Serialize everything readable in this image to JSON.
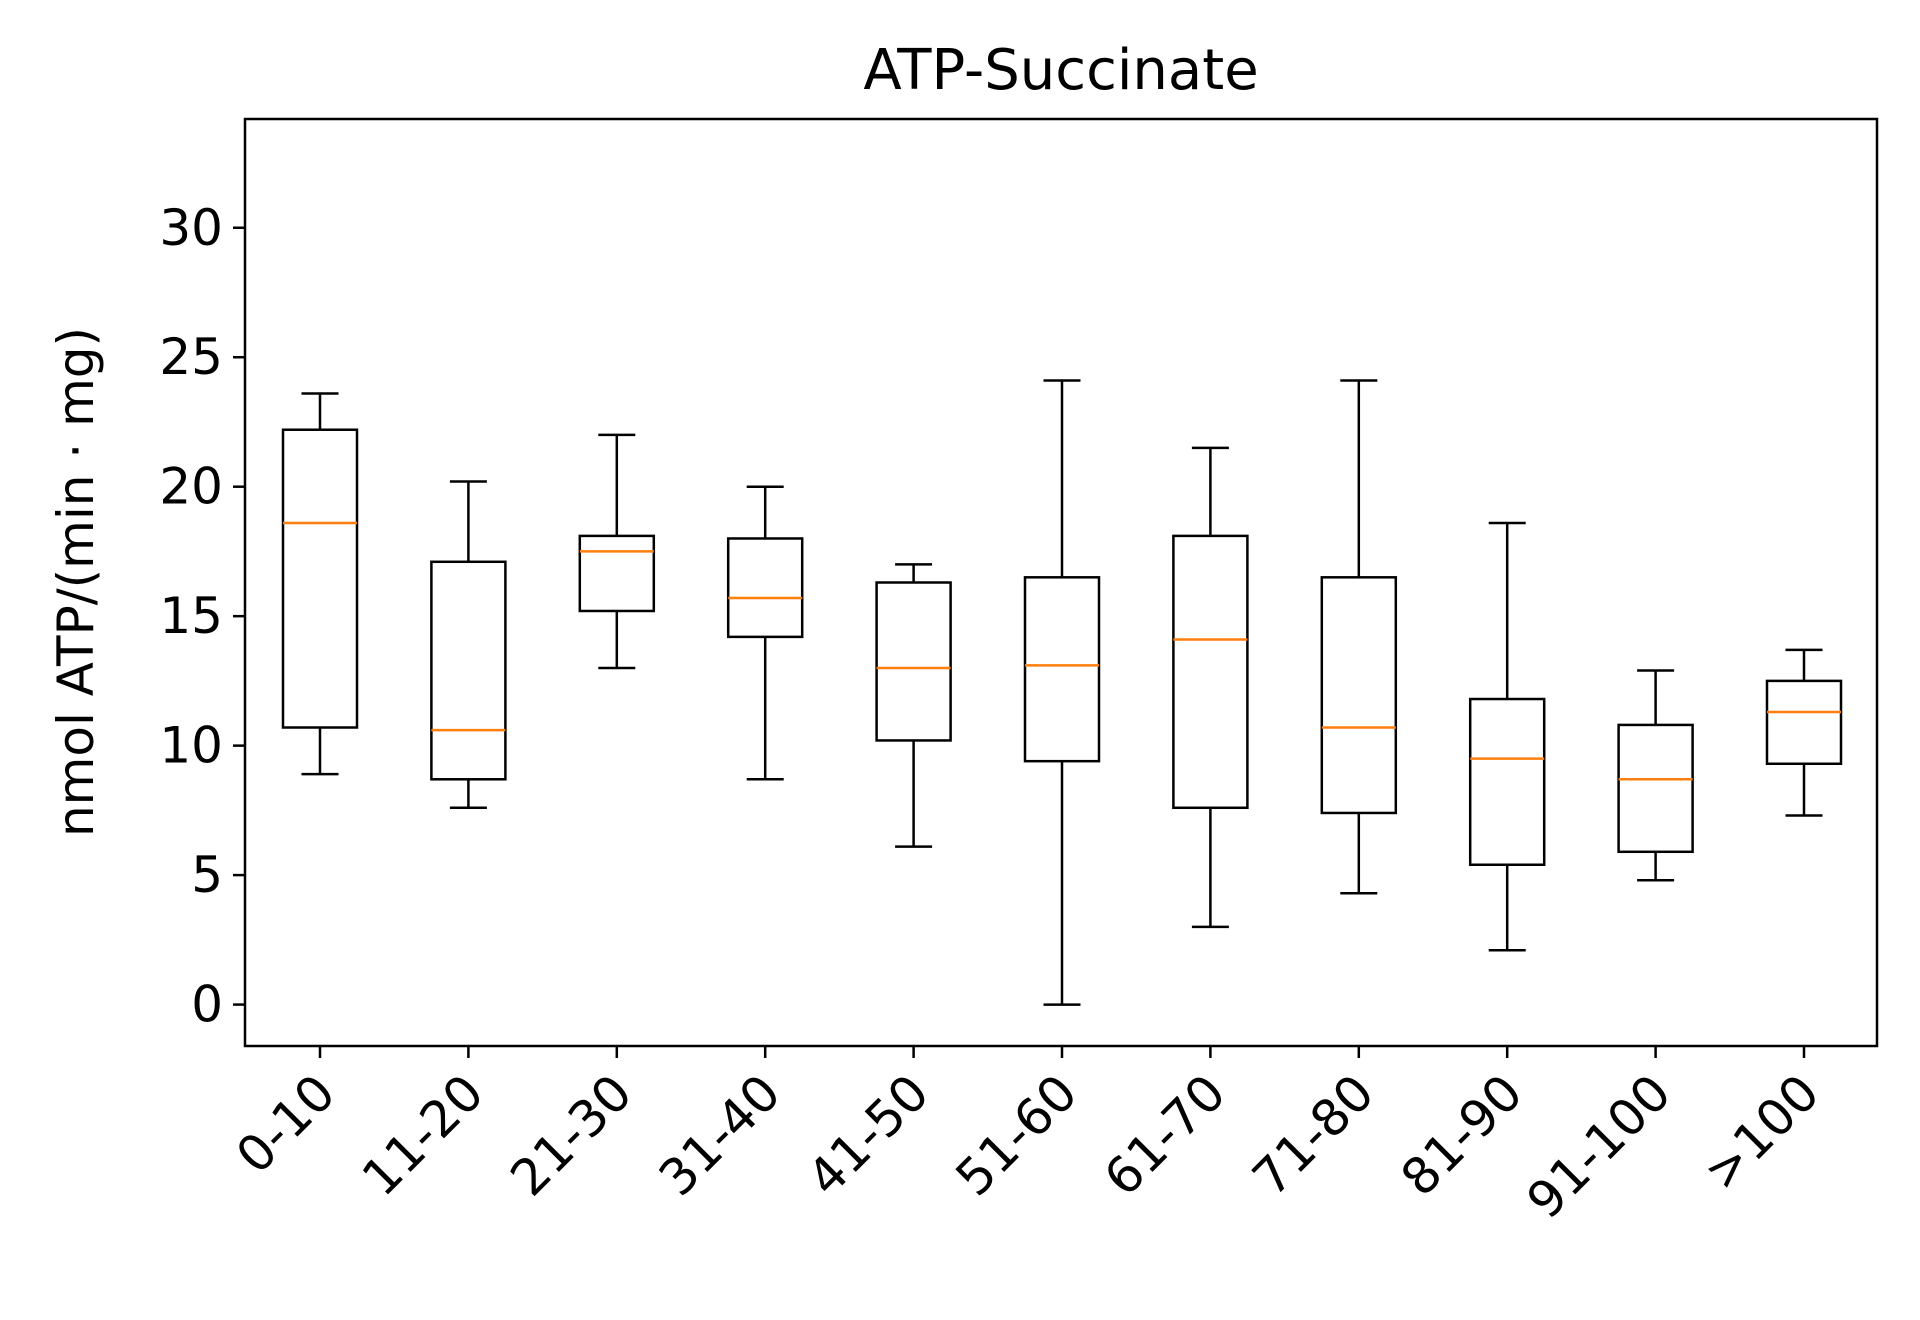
{
  "chart_data": {
    "type": "boxplot",
    "title": "ATP-Succinate",
    "xlabel": "",
    "ylabel": "nmol ATP/(min · mg)",
    "ylim": [
      -1.6,
      34.2
    ],
    "yticks": [
      0,
      5,
      10,
      15,
      20,
      25,
      30
    ],
    "grid": false,
    "categories": [
      "0-10",
      "11-20",
      "21-30",
      "31-40",
      "41-50",
      "51-60",
      "61-70",
      "71-80",
      "81-90",
      "91-100",
      ">100"
    ],
    "boxes": [
      {
        "whisker_low": 8.9,
        "q1": 10.7,
        "median": 18.6,
        "q3": 22.2,
        "whisker_high": 23.6
      },
      {
        "whisker_low": 7.6,
        "q1": 8.7,
        "median": 10.6,
        "q3": 17.1,
        "whisker_high": 20.2
      },
      {
        "whisker_low": 13.0,
        "q1": 15.2,
        "median": 17.5,
        "q3": 18.1,
        "whisker_high": 22.0
      },
      {
        "whisker_low": 8.7,
        "q1": 14.2,
        "median": 15.7,
        "q3": 18.0,
        "whisker_high": 20.0
      },
      {
        "whisker_low": 6.1,
        "q1": 10.2,
        "median": 13.0,
        "q3": 16.3,
        "whisker_high": 17.0
      },
      {
        "whisker_low": 0.0,
        "q1": 9.4,
        "median": 13.1,
        "q3": 16.5,
        "whisker_high": 24.1
      },
      {
        "whisker_low": 3.0,
        "q1": 7.6,
        "median": 14.1,
        "q3": 18.1,
        "whisker_high": 21.5
      },
      {
        "whisker_low": 4.3,
        "q1": 7.4,
        "median": 10.7,
        "q3": 16.5,
        "whisker_high": 24.1
      },
      {
        "whisker_low": 2.1,
        "q1": 5.4,
        "median": 9.5,
        "q3": 11.8,
        "whisker_high": 18.6
      },
      {
        "whisker_low": 4.8,
        "q1": 5.9,
        "median": 8.7,
        "q3": 10.8,
        "whisker_high": 12.9
      },
      {
        "whisker_low": 7.3,
        "q1": 9.3,
        "median": 11.3,
        "q3": 12.5,
        "whisker_high": 13.7
      }
    ],
    "colors": {
      "box": "#000000",
      "median": "#ff7f0e",
      "background": "#ffffff"
    }
  }
}
